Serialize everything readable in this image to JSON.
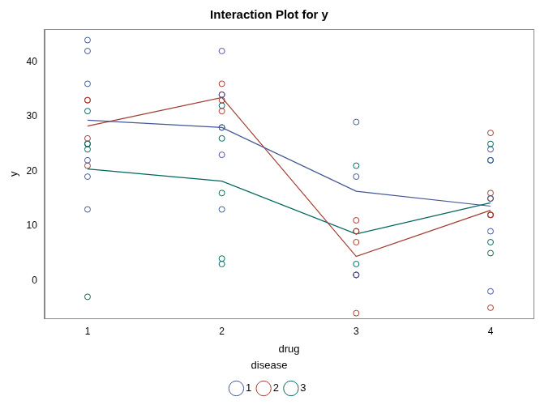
{
  "chart_data": {
    "type": "scatter",
    "title": "Interaction Plot for y",
    "x_label": "drug",
    "y_label": "y",
    "legend_title": "disease",
    "legend": "bottom",
    "grid": false,
    "xlim": [
      0.68,
      4.32
    ],
    "xticks": [
      1,
      2,
      3,
      4
    ],
    "ylim": [
      -7,
      46
    ],
    "yticks": [
      0,
      10,
      20,
      30,
      40
    ],
    "mean_x": [
      1,
      2,
      3,
      4
    ],
    "series": [
      {
        "name": "1",
        "color": "#445694",
        "marker": "circle",
        "x": [
          1,
          1,
          1,
          1,
          1,
          1,
          2,
          2,
          2,
          2,
          2,
          3,
          3,
          3,
          4,
          4,
          4,
          4,
          4
        ],
        "values": [
          42,
          44,
          36,
          13,
          19,
          22,
          28,
          23,
          34,
          42,
          13,
          1,
          29,
          19,
          24,
          9,
          22,
          -2,
          15
        ],
        "means": [
          29.33,
          28,
          16.33,
          13.6
        ]
      },
      {
        "name": "2",
        "color": "#A23A2E",
        "marker": "circle",
        "x": [
          1,
          1,
          1,
          1,
          2,
          2,
          2,
          2,
          3,
          3,
          3,
          3,
          3,
          4,
          4,
          4,
          4,
          4,
          4
        ],
        "values": [
          33,
          26,
          33,
          21,
          34,
          33,
          31,
          36,
          11,
          9,
          7,
          1,
          -6,
          27,
          12,
          12,
          -5,
          16,
          15
        ],
        "means": [
          28.25,
          33.5,
          4.4,
          12.83
        ]
      },
      {
        "name": "3",
        "color": "#01665E",
        "marker": "circle",
        "x": [
          1,
          1,
          1,
          1,
          1,
          2,
          2,
          2,
          2,
          2,
          2,
          3,
          3,
          3,
          3,
          4,
          4,
          4,
          4,
          4
        ],
        "values": [
          31,
          -3,
          25,
          25,
          24,
          3,
          26,
          28,
          32,
          4,
          16,
          21,
          1,
          9,
          3,
          22,
          7,
          25,
          5,
          12
        ],
        "means": [
          20.4,
          18.17,
          8.5,
          14.2
        ]
      }
    ]
  }
}
